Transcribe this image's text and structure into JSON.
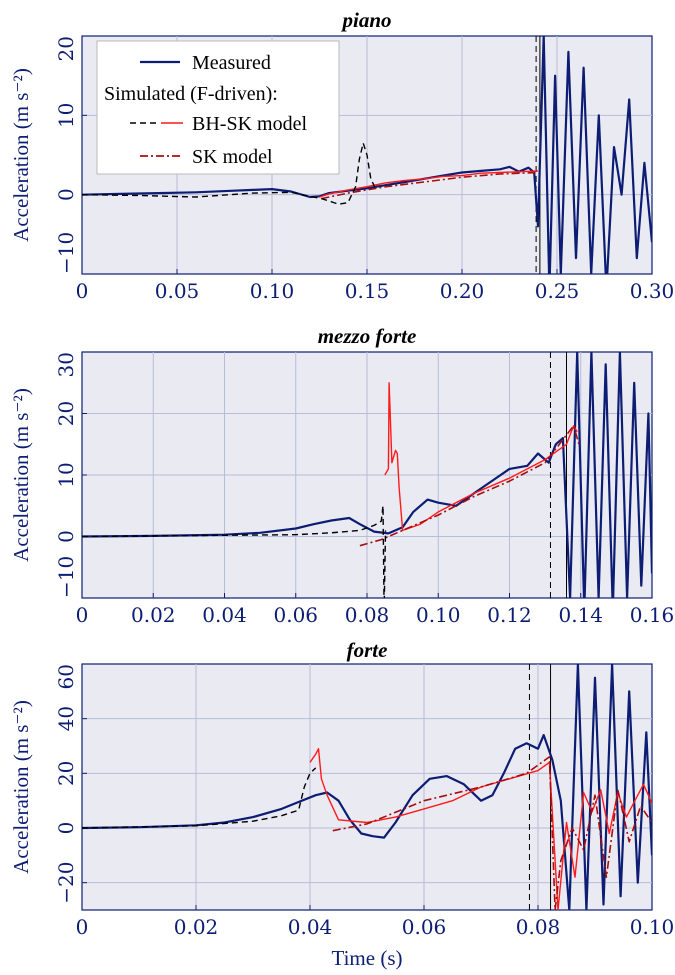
{
  "chart_data": [
    {
      "type": "line",
      "title": "piano",
      "ylabel": "Acceleration (m s⁻²)",
      "xlabel": "",
      "xlim": [
        0,
        0.3
      ],
      "ylim": [
        -10,
        20
      ],
      "xticks": [
        0,
        0.05,
        0.1,
        0.15,
        0.2,
        0.25,
        0.3
      ],
      "xtick_labels": [
        "0",
        "0.05",
        "0.10",
        "0.15",
        "0.20",
        "0.25",
        "0.30"
      ],
      "yticks": [
        -10,
        0,
        10,
        20
      ],
      "ytick_labels": [
        "−10",
        "0",
        "10",
        "20"
      ],
      "grid": true,
      "vlines": [
        {
          "x": 0.239,
          "style": "dashed"
        },
        {
          "x": 0.241,
          "style": "solid"
        }
      ],
      "legend": {
        "position": "top-left",
        "entries": [
          "Measured",
          "Simulated (F-driven):",
          "BH-SK model",
          "SK model"
        ]
      },
      "series": [
        {
          "name": "Measured",
          "style": "measured",
          "x": [
            0,
            0.02,
            0.04,
            0.06,
            0.08,
            0.09,
            0.1,
            0.11,
            0.12,
            0.125,
            0.13,
            0.14,
            0.15,
            0.16,
            0.17,
            0.18,
            0.19,
            0.2,
            0.21,
            0.22,
            0.225,
            0.23,
            0.235,
            0.238,
            0.24,
            0.243,
            0.246,
            0.249,
            0.252,
            0.256,
            0.26,
            0.264,
            0.268,
            0.272,
            0.276,
            0.28,
            0.284,
            0.288,
            0.292,
            0.296,
            0.3
          ],
          "y": [
            0,
            0.1,
            0.2,
            0.3,
            0.5,
            0.6,
            0.7,
            0.4,
            -0.3,
            -0.2,
            0.2,
            0.5,
            0.8,
            1.2,
            1.6,
            2.0,
            2.4,
            2.8,
            3.0,
            3.2,
            3.5,
            2.9,
            3.4,
            2.8,
            -4,
            20,
            -12,
            15,
            -10,
            18,
            -8,
            16,
            -10,
            10,
            -12,
            6,
            0,
            12,
            -8,
            4,
            -6
          ]
        },
        {
          "name": "BH-SK model",
          "style": "bhsk",
          "x": [
            0,
            0.03,
            0.06,
            0.09,
            0.11,
            0.12,
            0.126,
            0.13,
            0.135,
            0.14,
            0.144,
            0.146,
            0.148,
            0.15,
            0.152,
            0.155
          ],
          "y": [
            0,
            -0.1,
            -0.3,
            0.2,
            0.3,
            -0.2,
            -0.5,
            -0.8,
            -1.2,
            -1.0,
            1.0,
            4.5,
            6.5,
            5.0,
            2.0,
            0.5
          ]
        },
        {
          "name": "SK model",
          "style": "sk",
          "x": [
            0.126,
            0.14,
            0.16,
            0.18,
            0.2,
            0.22,
            0.24
          ],
          "y": [
            -0.5,
            0.2,
            1.0,
            1.6,
            2.2,
            2.6,
            2.8
          ]
        },
        {
          "name": "Simulated (F-driven) red",
          "style": "red",
          "x": [
            0.125,
            0.13,
            0.14,
            0.15,
            0.16,
            0.17,
            0.18,
            0.19,
            0.2,
            0.21,
            0.22,
            0.23,
            0.24
          ],
          "y": [
            -0.3,
            0.1,
            0.6,
            1.0,
            1.5,
            1.8,
            2.0,
            2.3,
            2.4,
            2.7,
            2.8,
            2.9,
            3.0
          ]
        }
      ]
    },
    {
      "type": "line",
      "title": "mezzo forte",
      "ylabel": "Acceleration (m s⁻²)",
      "xlabel": "",
      "xlim": [
        0,
        0.16
      ],
      "ylim": [
        -10,
        30
      ],
      "xticks": [
        0,
        0.02,
        0.04,
        0.06,
        0.08,
        0.1,
        0.12,
        0.14,
        0.16
      ],
      "xtick_labels": [
        "0",
        "0.02",
        "0.04",
        "0.06",
        "0.08",
        "0.10",
        "0.12",
        "0.14",
        "0.16"
      ],
      "yticks": [
        -10,
        0,
        10,
        20,
        30
      ],
      "ytick_labels": [
        "−10",
        "0",
        "10",
        "20",
        "30"
      ],
      "grid": true,
      "vlines": [
        {
          "x": 0.1315,
          "style": "dashed"
        },
        {
          "x": 0.136,
          "style": "solid"
        }
      ],
      "series": [
        {
          "name": "Measured",
          "style": "measured",
          "x": [
            0,
            0.02,
            0.04,
            0.05,
            0.06,
            0.065,
            0.07,
            0.075,
            0.078,
            0.082,
            0.086,
            0.09,
            0.093,
            0.097,
            0.1,
            0.105,
            0.11,
            0.115,
            0.12,
            0.125,
            0.128,
            0.131,
            0.133,
            0.135,
            0.137,
            0.139,
            0.141,
            0.143,
            0.145,
            0.147,
            0.149,
            0.151,
            0.153,
            0.155,
            0.157,
            0.159,
            0.16
          ],
          "y": [
            0,
            0.1,
            0.3,
            0.6,
            1.3,
            2.0,
            2.6,
            3.0,
            2.0,
            0.8,
            0.5,
            1.5,
            4.0,
            6.0,
            5.5,
            5.0,
            7.0,
            9.0,
            11.0,
            11.5,
            13.5,
            12.0,
            15.0,
            16.0,
            -10,
            30,
            -12,
            30,
            -10,
            28,
            -12,
            30,
            -10,
            25,
            -8,
            20,
            -6
          ]
        },
        {
          "name": "BH-SK model",
          "style": "bhsk",
          "x": [
            0,
            0.02,
            0.04,
            0.06,
            0.07,
            0.078,
            0.082,
            0.084,
            0.0845,
            0.0848,
            0.085,
            0.0852
          ],
          "y": [
            0,
            0.1,
            0.2,
            0.3,
            0.6,
            1.0,
            1.8,
            2.5,
            5.0,
            -12,
            -6,
            1.0
          ]
        },
        {
          "name": "SK model",
          "style": "sk",
          "x": [
            0.078,
            0.084,
            0.09,
            0.1,
            0.11,
            0.12,
            0.13,
            0.138,
            0.1395
          ],
          "y": [
            -1.5,
            -0.5,
            1.0,
            3.5,
            6.5,
            9.0,
            12.0,
            18.0,
            15.0
          ]
        },
        {
          "name": "Simulated (F-driven) red",
          "style": "red",
          "x": [
            0.085,
            0.086,
            0.0862,
            0.087,
            0.0875,
            0.088,
            0.0885,
            0.089,
            0.09,
            0.095,
            0.1,
            0.11,
            0.12,
            0.13,
            0.136,
            0.138,
            0.139
          ],
          "y": [
            10.0,
            11.0,
            25.0,
            12.0,
            13.0,
            14.0,
            13.5,
            8.0,
            1.0,
            2.0,
            4.0,
            7.0,
            9.5,
            12.5,
            15.0,
            18.0,
            17.0
          ]
        }
      ]
    },
    {
      "type": "line",
      "title": "forte",
      "ylabel": "Acceleration (m s⁻²)",
      "xlabel": "Time (s)",
      "xlim": [
        0,
        0.1
      ],
      "ylim": [
        -30,
        60
      ],
      "xticks": [
        0,
        0.02,
        0.04,
        0.06,
        0.08,
        0.1
      ],
      "xtick_labels": [
        "0",
        "0.02",
        "0.04",
        "0.06",
        "0.08",
        "0.10"
      ],
      "yticks": [
        -20,
        0,
        20,
        40,
        60
      ],
      "ytick_labels": [
        "−20",
        "0",
        "20",
        "40",
        "60"
      ],
      "grid": true,
      "vlines": [
        {
          "x": 0.0785,
          "style": "dashed"
        },
        {
          "x": 0.0822,
          "style": "solid"
        }
      ],
      "series": [
        {
          "name": "Measured",
          "style": "measured",
          "x": [
            0,
            0.01,
            0.02,
            0.025,
            0.03,
            0.035,
            0.038,
            0.041,
            0.043,
            0.045,
            0.047,
            0.049,
            0.051,
            0.053,
            0.055,
            0.058,
            0.061,
            0.064,
            0.067,
            0.07,
            0.072,
            0.074,
            0.076,
            0.078,
            0.08,
            0.081,
            0.0825,
            0.084,
            0.0855,
            0.087,
            0.0885,
            0.09,
            0.0915,
            0.093,
            0.0945,
            0.096,
            0.0975,
            0.099,
            0.1
          ],
          "y": [
            0,
            0.3,
            1.0,
            2.0,
            4.0,
            7.0,
            9.5,
            12.0,
            13.0,
            10.0,
            3.0,
            -2.0,
            -3.0,
            -3.5,
            2.0,
            12.0,
            18.0,
            19.0,
            16.0,
            10.0,
            12.0,
            20.0,
            29.0,
            31.0,
            29.0,
            34.0,
            25.0,
            10.0,
            -30.0,
            60.0,
            -30.0,
            55.0,
            -28.0,
            60.0,
            -25.0,
            50.0,
            -20.0,
            35.0,
            -10.0
          ]
        },
        {
          "name": "BH-SK model",
          "style": "bhsk",
          "x": [
            0,
            0.02,
            0.03,
            0.035,
            0.038,
            0.039,
            0.04,
            0.041
          ],
          "y": [
            0,
            0.8,
            2.5,
            4.5,
            6.5,
            15.0,
            20.0,
            22.0
          ]
        },
        {
          "name": "SK model",
          "style": "sk",
          "x": [
            0.044,
            0.05,
            0.06,
            0.07,
            0.078,
            0.082,
            0.083,
            0.084,
            0.086,
            0.088,
            0.09,
            0.092,
            0.094,
            0.096,
            0.098,
            0.1
          ],
          "y": [
            -1.0,
            1.5,
            10.0,
            15.0,
            20.0,
            26.0,
            -30.0,
            -12.0,
            0.0,
            -8.0,
            12.0,
            -18.0,
            14.0,
            -5.0,
            8.0,
            2.0
          ]
        },
        {
          "name": "Simulated (F-driven) red",
          "style": "red",
          "x": [
            0.04,
            0.041,
            0.0415,
            0.042,
            0.043,
            0.045,
            0.05,
            0.055,
            0.06,
            0.065,
            0.07,
            0.075,
            0.08,
            0.082,
            0.0835,
            0.085,
            0.0865,
            0.088,
            0.0895,
            0.091,
            0.0925,
            0.094,
            0.0955,
            0.097,
            0.0985,
            0.1
          ],
          "y": [
            24.0,
            27.0,
            29.0,
            18.0,
            12.0,
            3.0,
            2.0,
            4.0,
            7.0,
            10.0,
            15.0,
            18.0,
            21.0,
            24.0,
            -30.0,
            2.0,
            -18.0,
            13.0,
            6.0,
            14.0,
            -2.0,
            13.0,
            4.0,
            10.0,
            16.0,
            9.0
          ]
        }
      ]
    }
  ]
}
